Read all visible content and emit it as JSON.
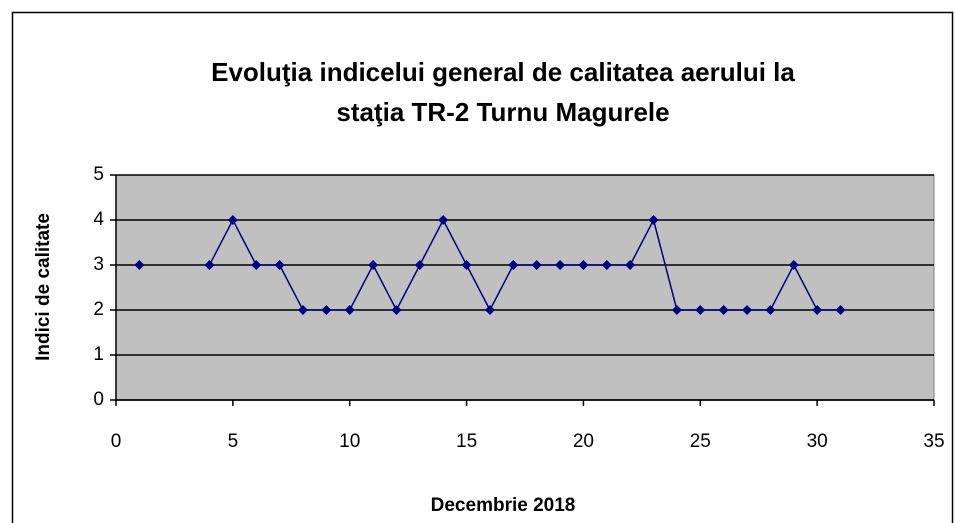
{
  "chart_data": {
    "type": "line",
    "title": [
      "Evoluţia indicelui general de calitatea aerului la",
      "staţia TR-2 Turnu Magurele"
    ],
    "xlabel": "Decembrie 2018",
    "ylabel": "Indici de calitate",
    "x": [
      1,
      2,
      3,
      4,
      5,
      6,
      7,
      8,
      9,
      10,
      11,
      12,
      13,
      14,
      15,
      16,
      17,
      18,
      19,
      20,
      21,
      22,
      23,
      24,
      25,
      26,
      27,
      28,
      29,
      30,
      31
    ],
    "series": [
      {
        "color": "#000080",
        "values": [
          3,
          null,
          null,
          3,
          4,
          3,
          3,
          2,
          2,
          2,
          3,
          2,
          3,
          4,
          3,
          2,
          3,
          3,
          3,
          3,
          3,
          3,
          4,
          2,
          2,
          2,
          2,
          2,
          3,
          2,
          2
        ]
      }
    ],
    "xlim": [
      0,
      35
    ],
    "xticks": [
      0,
      5,
      10,
      15,
      20,
      25,
      30,
      35
    ],
    "ylim": [
      0,
      5
    ],
    "yticks": [
      0,
      1,
      2,
      3,
      4,
      5
    ],
    "grid": true,
    "plot_background": "#c0c0c0"
  }
}
